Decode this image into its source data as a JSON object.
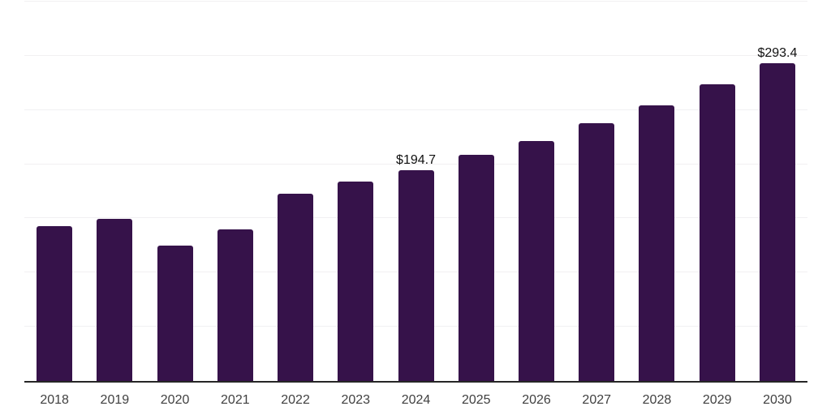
{
  "chart_data": {
    "type": "bar",
    "title": "",
    "xlabel": "",
    "ylabel": "",
    "categories": [
      "2018",
      "2019",
      "2020",
      "2021",
      "2022",
      "2023",
      "2024",
      "2025",
      "2026",
      "2027",
      "2028",
      "2029",
      "2030"
    ],
    "values": [
      142.6,
      149.4,
      124.9,
      139.9,
      172.6,
      184.0,
      194.7,
      208.4,
      221.5,
      237.5,
      254.5,
      273.7,
      293.4
    ],
    "annotations": [
      {
        "category": "2024",
        "text": "$194.7"
      },
      {
        "category": "2030",
        "text": "$293.4"
      }
    ],
    "ylim": [
      0,
      350
    ],
    "grid_step": 50,
    "grid": "horizontal",
    "legend": "none",
    "colors": {
      "bar": "#36124a",
      "axis_line": "#262626",
      "gridline": "#f1f0f2",
      "tick_label": "#404040",
      "data_label": "#111111",
      "background": "#ffffff"
    }
  }
}
